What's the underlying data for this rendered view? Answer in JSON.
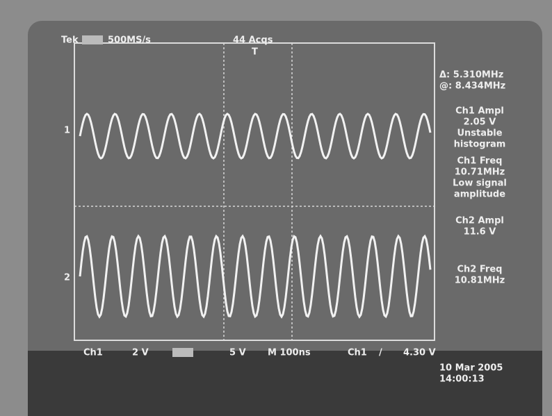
{
  "header": {
    "brand": "Tek",
    "sample_rate": "500MS/s",
    "acquisitions": "44 Acqs",
    "trigger_marker": "T"
  },
  "cursor": {
    "delta": "Δ: 5.310MHz",
    "at": "@: 8.434MHz"
  },
  "measurements": [
    {
      "label": "Ch1 Ampl",
      "value": "2.05 V",
      "note": [
        "Unstable",
        "histogram"
      ]
    },
    {
      "label": "Ch1 Freq",
      "value": "10.71MHz",
      "note": [
        "Low signal",
        "amplitude"
      ]
    },
    {
      "label": "Ch2 Ampl",
      "value": "11.6 V"
    },
    {
      "label": "Ch2 Freq",
      "value": "10.81MHz"
    }
  ],
  "channel_markers": [
    "1",
    "2"
  ],
  "footer": {
    "ch1": "Ch1",
    "ch1_scale": "2 V",
    "ch2_scale": "5 V",
    "timebase": "M 100ns",
    "trigger_source": "Ch1",
    "trigger_slope": "/",
    "trigger_level": "4.30 V"
  },
  "timestamp": {
    "date": "10 Mar 2005",
    "time": "14:00:13"
  }
}
